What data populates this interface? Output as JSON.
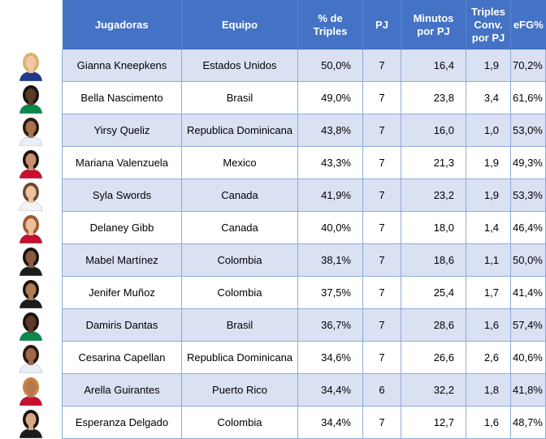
{
  "headers": {
    "player": "Jugadoras",
    "team": "Equipo",
    "pct_line1": "% de",
    "pct_line2": "Triples",
    "games": "PJ",
    "min_line1": "Minutos",
    "min_line2": "por PJ",
    "triples_line1": "Triples",
    "triples_line2": "Conv.",
    "triples_line3": "por PJ",
    "efg": "eFG%"
  },
  "rows": [
    {
      "player": "Gianna Kneepkens",
      "team": "Estados Unidos",
      "pct": "50,0%",
      "games": "7",
      "minutes": "16,4",
      "triples": "1,9",
      "efg": "70,2%",
      "jersey": "#1f3a8a",
      "skin": "#f1c7a8",
      "hair": "#d8b26a"
    },
    {
      "player": "Bella Nascimento",
      "team": "Brasil",
      "pct": "49,0%",
      "games": "7",
      "minutes": "23,8",
      "triples": "3,4",
      "efg": "61,6%",
      "jersey": "#0a8a4a",
      "skin": "#5a3a28",
      "hair": "#1a1410"
    },
    {
      "player": "Yirsy Queliz",
      "team": "Republica Dominicana",
      "pct": "43,8%",
      "games": "7",
      "minutes": "16,0",
      "triples": "1,0",
      "efg": "53,0%",
      "jersey": "#e9eef7",
      "skin": "#a9714e",
      "hair": "#2a1a12"
    },
    {
      "player": "Mariana Valenzuela",
      "team": "Mexico",
      "pct": "43,3%",
      "games": "7",
      "minutes": "21,3",
      "triples": "1,9",
      "efg": "49,3%",
      "jersey": "#c8102e",
      "skin": "#c99070",
      "hair": "#1c140f"
    },
    {
      "player": "Syla Swords",
      "team": "Canada",
      "pct": "41,9%",
      "games": "7",
      "minutes": "23,2",
      "triples": "1,9",
      "efg": "53,3%",
      "jersey": "#f2f2f2",
      "skin": "#efc2a4",
      "hair": "#6b4a2e"
    },
    {
      "player": "Delaney Gibb",
      "team": "Canada",
      "pct": "40,0%",
      "games": "7",
      "minutes": "18,0",
      "triples": "1,4",
      "efg": "46,4%",
      "jersey": "#c8102e",
      "skin": "#edbd9c",
      "hair": "#9a5a2e"
    },
    {
      "player": "Mabel Martínez",
      "team": "Colombia",
      "pct": "38,1%",
      "games": "7",
      "minutes": "18,6",
      "triples": "1,1",
      "efg": "50,0%",
      "jersey": "#1c1c1c",
      "skin": "#8b5a3c",
      "hair": "#1a1410"
    },
    {
      "player": "Jenifer Muñoz",
      "team": "Colombia",
      "pct": "37,5%",
      "games": "7",
      "minutes": "25,4",
      "triples": "1,7",
      "efg": "41,4%",
      "jersey": "#1c1c1c",
      "skin": "#b07a55",
      "hair": "#1a1410"
    },
    {
      "player": "Damiris Dantas",
      "team": "Brasil",
      "pct": "36,7%",
      "games": "7",
      "minutes": "28,6",
      "triples": "1,6",
      "efg": "57,4%",
      "jersey": "#0a8a4a",
      "skin": "#5a3a28",
      "hair": "#1a1410"
    },
    {
      "player": "Cesarina Capellan",
      "team": "Republica Dominicana",
      "pct": "34,6%",
      "games": "7",
      "minutes": "26,6",
      "triples": "2,6",
      "efg": "40,6%",
      "jersey": "#e9eef7",
      "skin": "#a0694a",
      "hair": "#2a1a12"
    },
    {
      "player": "Arella Guirantes",
      "team": "Puerto Rico",
      "pct": "34,4%",
      "games": "6",
      "minutes": "32,2",
      "triples": "1,8",
      "efg": "41,8%",
      "jersey": "#c8102e",
      "skin": "#b5784f",
      "hair": "#c9853f"
    },
    {
      "player": "Esperanza Delgado",
      "team": "Colombia",
      "pct": "34,4%",
      "games": "7",
      "minutes": "12,7",
      "triples": "1,6",
      "efg": "48,7%",
      "jersey": "#1c1c1c",
      "skin": "#d8a887",
      "hair": "#1a1410"
    }
  ]
}
